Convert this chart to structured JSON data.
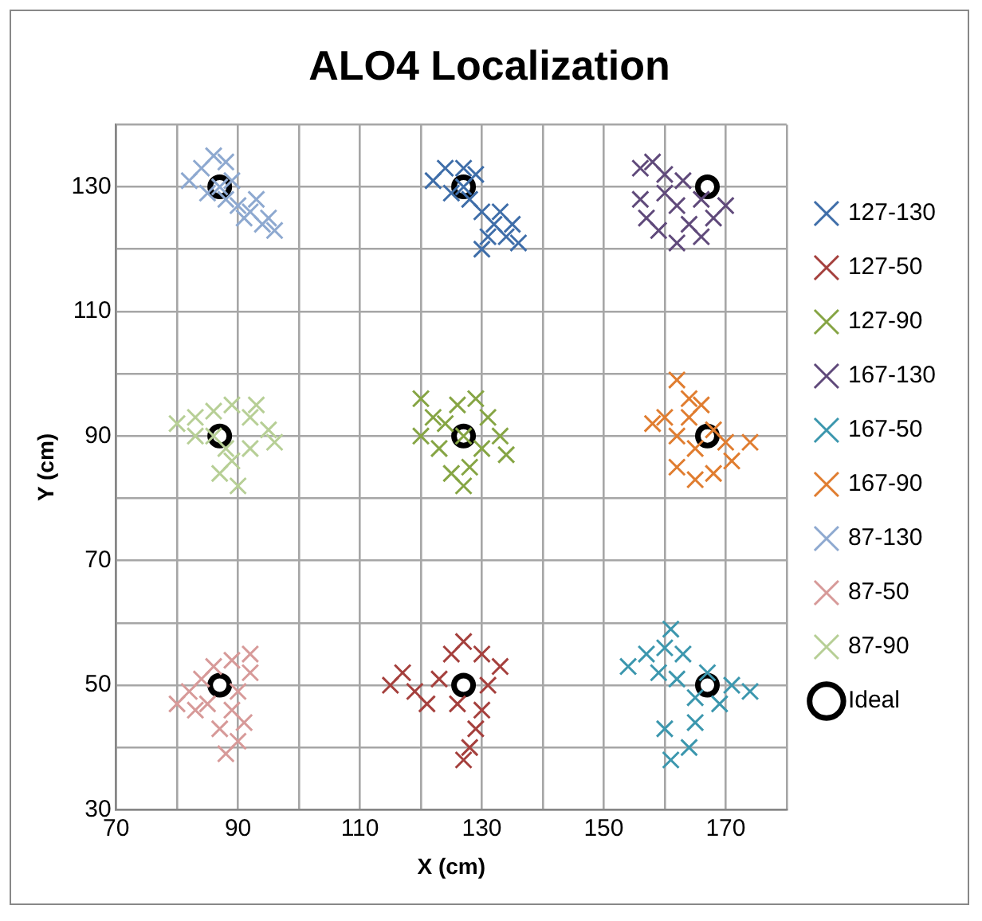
{
  "chart_data": {
    "type": "scatter",
    "title": "ALO4 Localization",
    "xlabel": "X (cm)",
    "ylabel": "Y (cm)",
    "xlim": [
      70,
      180
    ],
    "xticks": [
      70,
      {
        "value": 80,
        "label": null
      },
      90,
      {
        "value": 100,
        "label": null
      },
      110,
      {
        "value": 120,
        "label": null
      },
      130,
      {
        "value": 140,
        "label": null
      },
      150,
      {
        "value": 160,
        "label": null
      },
      170,
      {
        "value": 180,
        "label": null
      }
    ],
    "ylim": [
      30,
      140
    ],
    "yticks": [
      30,
      {
        "value": 40,
        "label": null
      },
      50,
      {
        "value": 60,
        "label": null
      },
      70,
      {
        "value": 80,
        "label": null
      },
      90,
      {
        "value": 100,
        "label": null
      },
      110,
      {
        "value": 120,
        "label": null
      },
      130,
      {
        "value": 140,
        "label": null
      }
    ],
    "grid": true,
    "legend": "right",
    "marker": "cross",
    "series": [
      {
        "name": "127-130",
        "color": "#3f6ea9",
        "x": [
          122,
          124,
          127,
          129,
          125,
          128,
          130,
          132,
          134,
          136,
          133,
          131,
          127,
          135,
          130
        ],
        "values": [
          131,
          133,
          133,
          132,
          129,
          128,
          126,
          124,
          122,
          121,
          126,
          122,
          130,
          124,
          120
        ]
      },
      {
        "name": "127-50",
        "color": "#a5403d",
        "x": [
          115,
          117,
          119,
          121,
          123,
          125,
          127,
          130,
          133,
          131,
          130,
          129,
          128,
          127,
          126
        ],
        "values": [
          50,
          52,
          49,
          47,
          51,
          55,
          57,
          55,
          53,
          50,
          46,
          43,
          40,
          38,
          47
        ]
      },
      {
        "name": "127-90",
        "color": "#86a544",
        "x": [
          120,
          122,
          120,
          124,
          126,
          129,
          131,
          133,
          134,
          130,
          128,
          127,
          125,
          123,
          127
        ],
        "values": [
          96,
          93,
          90,
          92,
          95,
          96,
          93,
          90,
          87,
          88,
          85,
          82,
          84,
          88,
          90
        ]
      },
      {
        "name": "167-130",
        "color": "#604a7b",
        "x": [
          156,
          158,
          160,
          156,
          157,
          160,
          162,
          164,
          162,
          166,
          168,
          170,
          166,
          163,
          159
        ],
        "values": [
          133,
          134,
          132,
          128,
          125,
          129,
          127,
          124,
          121,
          122,
          125,
          127,
          128,
          131,
          123
        ]
      },
      {
        "name": "167-50",
        "color": "#3c97ae",
        "x": [
          154,
          157,
          159,
          160,
          161,
          163,
          162,
          165,
          167,
          171,
          174,
          169,
          165,
          164,
          161,
          160
        ],
        "values": [
          53,
          55,
          52,
          56,
          59,
          55,
          51,
          48,
          52,
          50,
          49,
          47,
          44,
          40,
          38,
          43
        ]
      },
      {
        "name": "167-90",
        "color": "#e07d30",
        "x": [
          162,
          164,
          160,
          158,
          162,
          165,
          162,
          165,
          168,
          171,
          174,
          170,
          168,
          164,
          166
        ],
        "values": [
          99,
          96,
          93,
          92,
          90,
          88,
          85,
          83,
          84,
          86,
          89,
          89,
          91,
          93,
          95
        ]
      },
      {
        "name": "87-130",
        "color": "#8ea9d0",
        "x": [
          82,
          84,
          86,
          88,
          85,
          88,
          90,
          92,
          94,
          96,
          93,
          89,
          87,
          91,
          95
        ],
        "values": [
          131,
          133,
          135,
          134,
          129,
          128,
          127,
          126,
          124,
          123,
          128,
          131,
          130,
          125,
          125
        ]
      },
      {
        "name": "87-50",
        "color": "#d79a99",
        "x": [
          80,
          82,
          84,
          86,
          89,
          92,
          92,
          90,
          89,
          91,
          90,
          88,
          87,
          85,
          83
        ],
        "values": [
          47,
          49,
          51,
          53,
          54,
          55,
          52,
          49,
          46,
          44,
          41,
          39,
          43,
          47,
          46
        ]
      },
      {
        "name": "87-90",
        "color": "#b7cf96",
        "x": [
          80,
          83,
          86,
          89,
          92,
          95,
          96,
          92,
          89,
          87,
          90,
          86,
          83,
          93,
          88
        ],
        "values": [
          92,
          93,
          94,
          95,
          93,
          91,
          89,
          88,
          86,
          84,
          82,
          90,
          90,
          95,
          88
        ]
      },
      {
        "name": "Ideal",
        "color": "#000000",
        "marker": "circle",
        "x": [
          87,
          127,
          167,
          87,
          127,
          167,
          87,
          127,
          167
        ],
        "values": [
          130,
          130,
          130,
          90,
          90,
          90,
          50,
          50,
          50
        ]
      }
    ]
  }
}
